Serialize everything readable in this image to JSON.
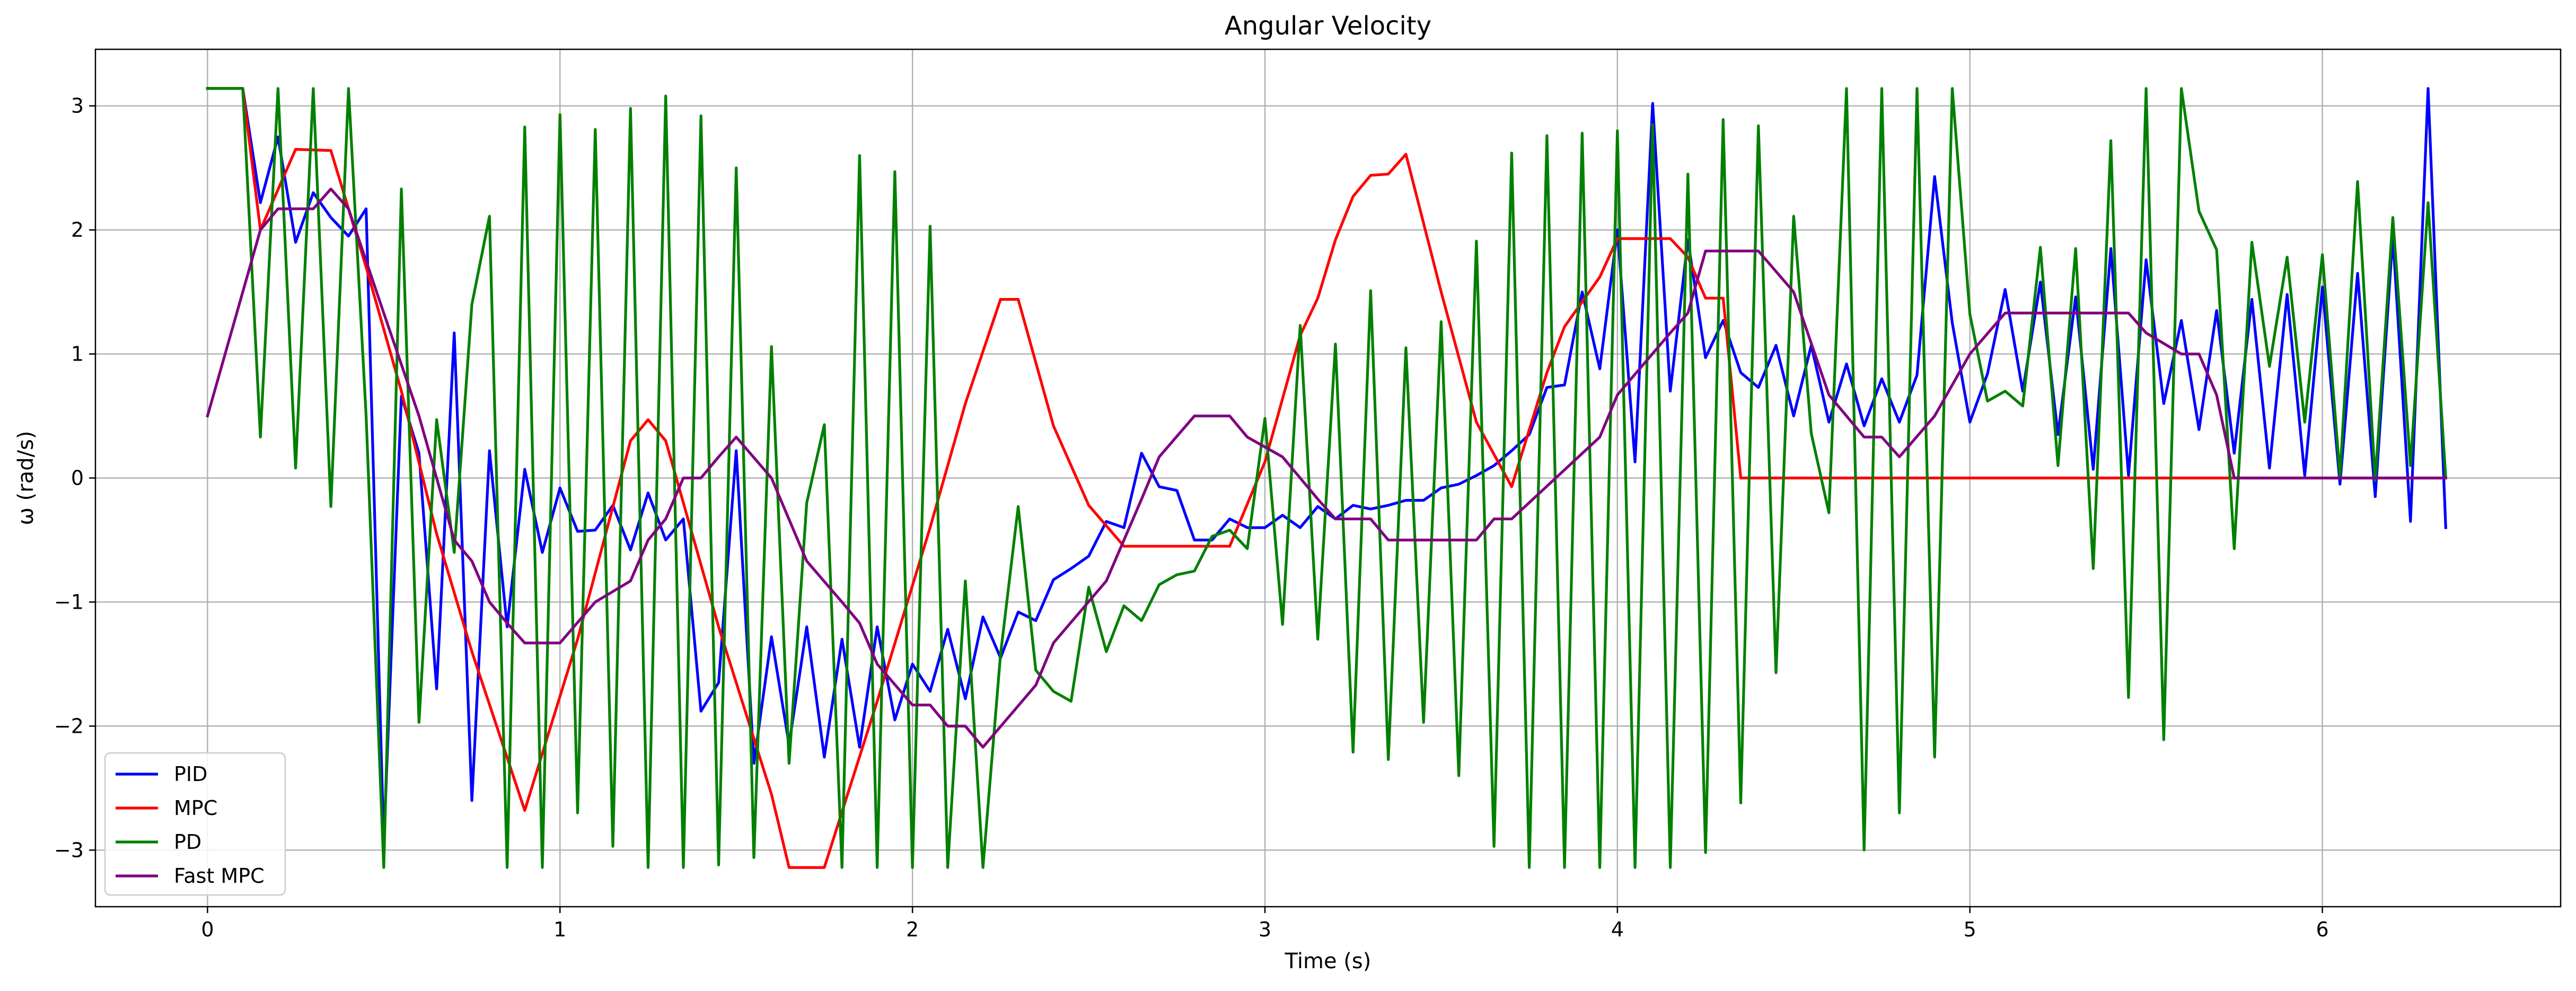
{
  "chart_data": {
    "type": "line",
    "title": "Angular Velocity",
    "xlabel": "Time (s)",
    "ylabel": "ω (rad/s)",
    "xlim": [
      -0.318,
      6.676
    ],
    "ylim": [
      -3.456,
      3.456
    ],
    "x_ticks": [
      0,
      1,
      2,
      3,
      4,
      5,
      6
    ],
    "x_tick_labels": [
      "0",
      "1",
      "2",
      "3",
      "4",
      "5",
      "6"
    ],
    "y_ticks": [
      -3,
      -2,
      -1,
      0,
      1,
      2,
      3
    ],
    "y_tick_labels": [
      "−3",
      "−2",
      "−1",
      "0",
      "1",
      "2",
      "3"
    ],
    "grid": true,
    "legend_position": "lower-left",
    "series": [
      {
        "name": "PID",
        "color": "#0000ff",
        "x": [
          0,
          0.05,
          0.1,
          0.15,
          0.2,
          0.25,
          0.3,
          0.35,
          0.4,
          0.45,
          0.5,
          0.55,
          0.6,
          0.65,
          0.7,
          0.75,
          0.8,
          0.85,
          0.9,
          0.95,
          1.0,
          1.05,
          1.1,
          1.15,
          1.2,
          1.25,
          1.3,
          1.35,
          1.4,
          1.45,
          1.5,
          1.55,
          1.6,
          1.65,
          1.7,
          1.75,
          1.8,
          1.85,
          1.9,
          1.95,
          2.0,
          2.05,
          2.1,
          2.15,
          2.2,
          2.25,
          2.3,
          2.35,
          2.4,
          2.45,
          2.5,
          2.55,
          2.6,
          2.65,
          2.7,
          2.75,
          2.8,
          2.85,
          2.9,
          2.95,
          3.0,
          3.05,
          3.1,
          3.15,
          3.2,
          3.25,
          3.3,
          3.35,
          3.4,
          3.45,
          3.5,
          3.55,
          3.6,
          3.65,
          3.7,
          3.75,
          3.8,
          3.85,
          3.9,
          3.95,
          4.0,
          4.05,
          4.1,
          4.15,
          4.2,
          4.25,
          4.3,
          4.35,
          4.4,
          4.45,
          4.5,
          4.55,
          4.6,
          4.65,
          4.7,
          4.75,
          4.8,
          4.85,
          4.9,
          4.95,
          5.0,
          5.05,
          5.1,
          5.15,
          5.2,
          5.25,
          5.3,
          5.35,
          5.4,
          5.45,
          5.5,
          5.55,
          5.6,
          5.65,
          5.7,
          5.75,
          5.8,
          5.85,
          5.9,
          5.95,
          6.0,
          6.05,
          6.1,
          6.15,
          6.2,
          6.25,
          6.3,
          6.35
        ],
        "y": [
          3.14,
          3.14,
          3.14,
          2.22,
          2.75,
          1.9,
          2.3,
          2.1,
          1.95,
          2.17,
          -2.95,
          0.66,
          0.2,
          -1.7,
          1.17,
          -2.6,
          0.22,
          -1.2,
          0.07,
          -0.6,
          -0.08,
          -0.43,
          -0.42,
          -0.22,
          -0.58,
          -0.12,
          -0.5,
          -0.33,
          -1.88,
          -1.65,
          0.22,
          -2.3,
          -1.28,
          -2.15,
          -1.2,
          -2.25,
          -1.3,
          -2.17,
          -1.2,
          -1.95,
          -1.5,
          -1.72,
          -1.22,
          -1.78,
          -1.12,
          -1.45,
          -1.08,
          -1.15,
          -0.82,
          -0.73,
          -0.63,
          -0.35,
          -0.4,
          0.2,
          -0.07,
          -0.1,
          -0.5,
          -0.5,
          -0.33,
          -0.4,
          -0.4,
          -0.3,
          -0.4,
          -0.23,
          -0.33,
          -0.22,
          -0.25,
          -0.22,
          -0.18,
          -0.18,
          -0.08,
          -0.05,
          0.02,
          0.1,
          0.22,
          0.35,
          0.73,
          0.75,
          1.5,
          0.88,
          2.0,
          0.13,
          3.02,
          0.7,
          1.92,
          0.97,
          1.27,
          0.85,
          0.73,
          1.07,
          0.5,
          1.07,
          0.45,
          0.92,
          0.42,
          0.8,
          0.45,
          0.83,
          2.43,
          1.25,
          0.45,
          0.84,
          1.52,
          0.7,
          1.58,
          0.35,
          1.46,
          0.07,
          1.85,
          0.02,
          1.76,
          0.6,
          1.27,
          0.39,
          1.35,
          0.2,
          1.44,
          0.08,
          1.48,
          0.02,
          1.54,
          -0.05,
          1.65,
          -0.15,
          1.95,
          -0.35,
          3.14,
          -0.4
        ]
      },
      {
        "name": "MPC",
        "color": "#ff0000",
        "x": [
          0,
          0.1,
          0.15,
          0.25,
          0.35,
          0.45,
          0.55,
          0.65,
          0.75,
          0.9,
          1.05,
          1.2,
          1.25,
          1.3,
          1.45,
          1.6,
          1.65,
          1.75,
          1.9,
          2.05,
          2.15,
          2.25,
          2.3,
          2.4,
          2.5,
          2.6,
          2.75,
          2.9,
          3.0,
          3.1,
          3.15,
          3.2,
          3.25,
          3.3,
          3.35,
          3.4,
          3.5,
          3.6,
          3.7,
          3.8,
          3.85,
          3.9,
          3.95,
          4.0,
          4.15,
          4.2,
          4.25,
          4.3,
          4.35,
          6.35
        ],
        "y": [
          3.14,
          3.14,
          2.0,
          2.65,
          2.64,
          1.7,
          0.7,
          -0.45,
          -1.4,
          -2.68,
          -1.3,
          0.3,
          0.47,
          0.3,
          -1.2,
          -2.55,
          -3.14,
          -3.14,
          -1.8,
          -0.4,
          0.6,
          1.44,
          1.44,
          0.42,
          -0.22,
          -0.55,
          -0.55,
          -0.55,
          0.13,
          1.15,
          1.45,
          1.92,
          2.27,
          2.44,
          2.45,
          2.61,
          1.5,
          0.45,
          -0.07,
          0.85,
          1.22,
          1.42,
          1.62,
          1.93,
          1.93,
          1.78,
          1.45,
          1.45,
          0.0,
          0.0
        ]
      },
      {
        "name": "PD",
        "color": "#008000",
        "x": [
          0,
          0.05,
          0.1,
          0.15,
          0.2,
          0.25,
          0.3,
          0.35,
          0.4,
          0.45,
          0.5,
          0.55,
          0.6,
          0.65,
          0.7,
          0.75,
          0.8,
          0.85,
          0.9,
          0.95,
          1.0,
          1.05,
          1.1,
          1.15,
          1.2,
          1.25,
          1.3,
          1.35,
          1.4,
          1.45,
          1.5,
          1.55,
          1.6,
          1.65,
          1.7,
          1.75,
          1.8,
          1.85,
          1.9,
          1.95,
          2.0,
          2.05,
          2.1,
          2.15,
          2.2,
          2.25,
          2.3,
          2.35,
          2.4,
          2.45,
          2.5,
          2.55,
          2.6,
          2.65,
          2.7,
          2.75,
          2.8,
          2.85,
          2.9,
          2.95,
          3.0,
          3.05,
          3.1,
          3.15,
          3.2,
          3.25,
          3.3,
          3.35,
          3.4,
          3.45,
          3.5,
          3.55,
          3.6,
          3.65,
          3.7,
          3.75,
          3.8,
          3.85,
          3.9,
          3.95,
          4.0,
          4.05,
          4.1,
          4.15,
          4.2,
          4.25,
          4.3,
          4.35,
          4.4,
          4.45,
          4.5,
          4.55,
          4.6,
          4.65,
          4.7,
          4.75,
          4.8,
          4.85,
          4.9,
          4.95,
          5.0,
          5.05,
          5.1,
          5.15,
          5.2,
          5.25,
          5.3,
          5.35,
          5.4,
          5.45,
          5.5,
          5.55,
          5.6,
          5.65,
          5.7,
          5.75,
          5.8,
          5.85,
          5.9,
          5.95,
          6.0,
          6.05,
          6.1,
          6.15,
          6.2,
          6.25,
          6.3,
          6.35
        ],
        "y": [
          3.14,
          3.14,
          3.14,
          0.33,
          3.14,
          0.08,
          3.14,
          -0.23,
          3.14,
          0.5,
          -3.14,
          2.33,
          -1.97,
          0.47,
          -0.6,
          1.4,
          2.11,
          -3.14,
          2.83,
          -3.14,
          2.93,
          -2.7,
          2.81,
          -2.97,
          2.98,
          -3.14,
          3.08,
          -3.14,
          2.92,
          -3.12,
          2.5,
          -3.06,
          1.06,
          -2.3,
          -0.2,
          0.43,
          -3.14,
          2.6,
          -3.14,
          2.47,
          -3.14,
          2.03,
          -3.14,
          -0.83,
          -3.14,
          -1.42,
          -0.23,
          -1.55,
          -1.72,
          -1.8,
          -0.88,
          -1.4,
          -1.03,
          -1.15,
          -0.86,
          -0.78,
          -0.75,
          -0.47,
          -0.42,
          -0.57,
          0.48,
          -1.18,
          1.23,
          -1.3,
          1.08,
          -2.21,
          1.51,
          -2.27,
          1.05,
          -1.97,
          1.26,
          -2.4,
          1.91,
          -2.97,
          2.62,
          -3.14,
          2.76,
          -3.14,
          2.78,
          -3.14,
          2.8,
          -3.14,
          2.85,
          -3.14,
          2.45,
          -3.02,
          2.89,
          -2.62,
          2.84,
          -1.57,
          2.11,
          0.36,
          -0.28,
          3.14,
          -3.0,
          3.14,
          -2.7,
          3.14,
          -2.25,
          3.14,
          1.32,
          0.62,
          0.7,
          0.58,
          1.86,
          0.1,
          1.85,
          -0.73,
          2.72,
          -1.77,
          3.14,
          -2.11,
          3.14,
          2.15,
          1.84,
          -0.57,
          1.9,
          0.9,
          1.78,
          0.45,
          1.8,
          0.02,
          2.39,
          -0.02,
          2.1,
          0.1,
          2.22,
          0.0
        ]
      },
      {
        "name": "Fast MPC",
        "color": "#800080",
        "x": [
          0,
          0.15,
          0.2,
          0.3,
          0.35,
          0.4,
          0.5,
          0.6,
          0.7,
          0.75,
          0.8,
          0.85,
          0.9,
          1.0,
          1.1,
          1.2,
          1.25,
          1.3,
          1.35,
          1.4,
          1.45,
          1.5,
          1.6,
          1.7,
          1.8,
          1.85,
          1.9,
          2.0,
          2.05,
          2.1,
          2.15,
          2.2,
          2.35,
          2.4,
          2.55,
          2.65,
          2.7,
          2.8,
          2.9,
          2.95,
          3.05,
          3.15,
          3.2,
          3.3,
          3.35,
          3.6,
          3.65,
          3.7,
          3.95,
          4.0,
          4.15,
          4.2,
          4.25,
          4.4,
          4.5,
          4.6,
          4.7,
          4.75,
          4.8,
          4.9,
          5.0,
          5.1,
          5.45,
          5.5,
          5.6,
          5.65,
          5.7,
          5.75,
          6.35
        ],
        "y": [
          0.5,
          2.0,
          2.17,
          2.17,
          2.33,
          2.17,
          1.33,
          0.5,
          -0.5,
          -0.67,
          -1.0,
          -1.17,
          -1.33,
          -1.33,
          -1.0,
          -0.83,
          -0.5,
          -0.33,
          0.0,
          0.0,
          0.17,
          0.33,
          0.0,
          -0.67,
          -1.0,
          -1.17,
          -1.5,
          -1.83,
          -1.83,
          -2.0,
          -2.0,
          -2.17,
          -1.67,
          -1.33,
          -0.83,
          -0.17,
          0.17,
          0.5,
          0.5,
          0.33,
          0.17,
          -0.17,
          -0.33,
          -0.33,
          -0.5,
          -0.5,
          -0.33,
          -0.33,
          0.33,
          0.67,
          1.17,
          1.33,
          1.83,
          1.83,
          1.5,
          0.67,
          0.33,
          0.33,
          0.17,
          0.5,
          1.0,
          1.33,
          1.33,
          1.17,
          1.0,
          1.0,
          0.67,
          0.0,
          0.0
        ]
      }
    ]
  }
}
